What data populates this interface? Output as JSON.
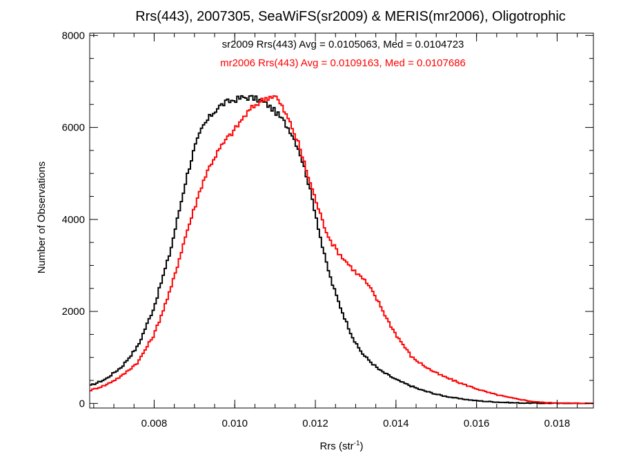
{
  "chart_data": {
    "type": "line",
    "title": "Rrs(443), 2007305, SeaWiFS(sr2009) & MERIS(mr2006), Oligotrophic",
    "xlabel_main": "Rrs (str",
    "xlabel_sup": "-1",
    "xlabel_close": ")",
    "ylabel": "Number of Observations",
    "xlim": [
      0.0064,
      0.0189
    ],
    "ylim": [
      -100,
      8050
    ],
    "x_ticks": [
      0.008,
      0.01,
      0.012,
      0.014,
      0.016,
      0.018
    ],
    "x_tick_labels": [
      "0.008",
      "0.010",
      "0.012",
      "0.014",
      "0.016",
      "0.018"
    ],
    "y_ticks": [
      0,
      2000,
      4000,
      6000,
      8000
    ],
    "y_tick_labels": [
      "0",
      "2000",
      "4000",
      "6000",
      "8000"
    ],
    "annotations": [
      {
        "text": "sr2009 Rrs(443) Avg = 0.0105063, Med = 0.0104723",
        "color": "#000000"
      },
      {
        "text": "mr2006 Rrs(443) Avg = 0.0109163, Med = 0.0107686",
        "color": "#ff0000"
      }
    ],
    "series": [
      {
        "color": "#000000",
        "x": [
          0.0064,
          0.0068,
          0.0072,
          0.0076,
          0.008,
          0.0084,
          0.0088,
          0.009,
          0.0092,
          0.0094,
          0.0096,
          0.0098,
          0.01,
          0.0102,
          0.0104,
          0.0106,
          0.0108,
          0.011,
          0.0112,
          0.0114,
          0.0116,
          0.0118,
          0.012,
          0.0122,
          0.0124,
          0.0126,
          0.0128,
          0.013,
          0.0132,
          0.0134,
          0.0136,
          0.0138,
          0.014,
          0.0142,
          0.0144,
          0.0146,
          0.0148,
          0.015,
          0.0152,
          0.0154,
          0.0156,
          0.0158,
          0.016,
          0.0162,
          0.0164,
          0.0166,
          0.0168,
          0.017,
          0.0172,
          0.0174,
          0.0176,
          0.0178,
          0.018,
          0.0182,
          0.0186,
          0.0189
        ],
        "y": [
          380,
          530,
          800,
          1250,
          2100,
          3300,
          4900,
          5550,
          6000,
          6250,
          6450,
          6550,
          6600,
          6650,
          6650,
          6600,
          6500,
          6350,
          6150,
          5900,
          5500,
          4900,
          4150,
          3300,
          2650,
          2150,
          1700,
          1300,
          1050,
          880,
          720,
          620,
          520,
          440,
          370,
          300,
          250,
          200,
          160,
          130,
          100,
          80,
          60,
          45,
          35,
          25,
          18,
          12,
          8,
          6,
          4,
          3,
          2,
          1,
          0,
          0
        ]
      },
      {
        "color": "#ff0000",
        "x": [
          0.0064,
          0.0068,
          0.0072,
          0.0076,
          0.008,
          0.0084,
          0.0088,
          0.009,
          0.0092,
          0.0094,
          0.0096,
          0.0098,
          0.01,
          0.0102,
          0.0104,
          0.0106,
          0.0108,
          0.011,
          0.0112,
          0.0114,
          0.0116,
          0.0118,
          0.012,
          0.0122,
          0.0124,
          0.0126,
          0.0128,
          0.013,
          0.0132,
          0.0134,
          0.0136,
          0.0138,
          0.014,
          0.0142,
          0.0144,
          0.0146,
          0.0148,
          0.015,
          0.0152,
          0.0154,
          0.0156,
          0.0158,
          0.016,
          0.0162,
          0.0164,
          0.0166,
          0.0168,
          0.017,
          0.0172,
          0.0174,
          0.0176,
          0.0178,
          0.018,
          0.0182,
          0.0186,
          0.0189
        ],
        "y": [
          280,
          400,
          600,
          900,
          1500,
          2450,
          3700,
          4250,
          4800,
          5200,
          5500,
          5750,
          5950,
          6200,
          6400,
          6550,
          6650,
          6700,
          6400,
          6050,
          5600,
          5000,
          4450,
          3900,
          3500,
          3250,
          3050,
          2850,
          2700,
          2450,
          2150,
          1800,
          1500,
          1250,
          1000,
          880,
          760,
          660,
          580,
          510,
          440,
          380,
          320,
          260,
          210,
          170,
          130,
          100,
          70,
          40,
          25,
          15,
          10,
          5,
          2,
          0
        ]
      }
    ]
  }
}
